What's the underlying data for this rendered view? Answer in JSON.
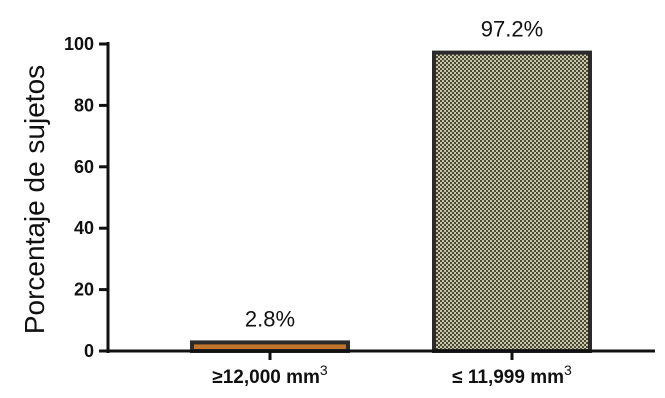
{
  "chart_data": {
    "type": "bar",
    "title": "",
    "xlabel": "",
    "ylabel": "Porcentaje de sujetos",
    "ylim": [
      0,
      100
    ],
    "yticks": [
      0,
      20,
      40,
      60,
      80,
      100
    ],
    "categories": [
      {
        "text": "≥12,000 mm",
        "sup": "3"
      },
      {
        "text": "≤ 11,999 mm",
        "sup": "3"
      }
    ],
    "values": [
      2.8,
      97.2
    ],
    "data_labels": [
      "2.8%",
      "97.2%"
    ],
    "bar_fill": "#9c9a73",
    "bar_fill_small": "#c0752a",
    "bar_edge": "#2b2b2b",
    "grid": false,
    "legend": "none"
  }
}
